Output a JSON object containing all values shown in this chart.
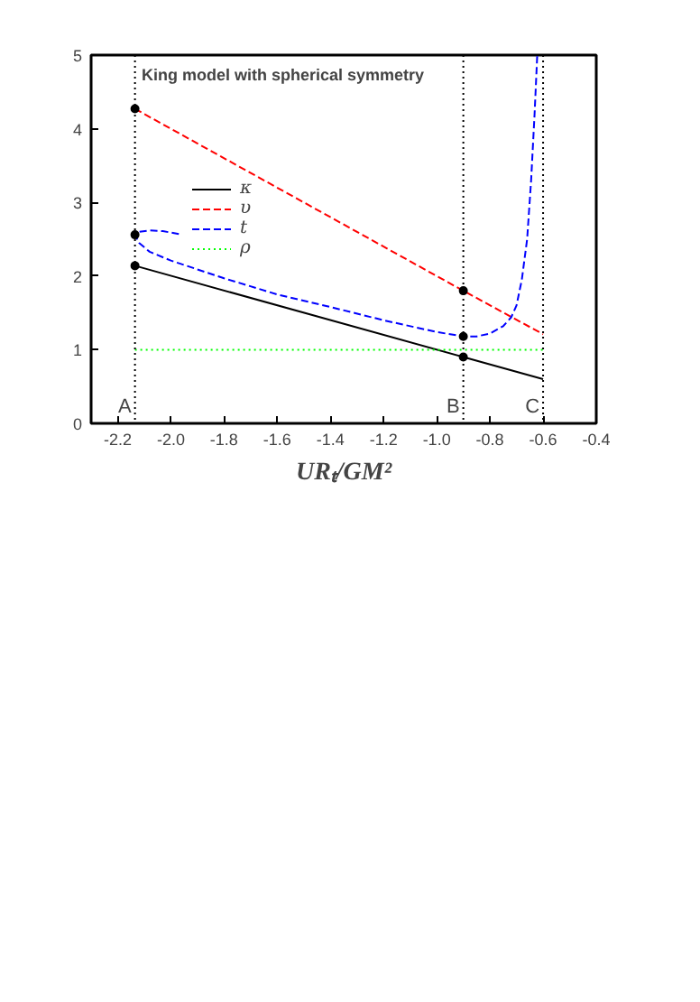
{
  "chart_data": {
    "type": "line",
    "title": "King model with spherical symmetry",
    "xlabel": "URₜ/GM²",
    "xlim": [
      -2.3,
      -0.4
    ],
    "ylim": [
      0,
      5
    ],
    "xticks": [
      -2.2,
      {
        "value": -2.0,
        "label": "-2.0"
      },
      -1.8,
      -1.6,
      -1.4,
      -1.2,
      {
        "value": -1.0,
        "label": "-1.0"
      },
      -0.8,
      -0.6,
      -0.4
    ],
    "yticks": [
      0,
      1,
      2,
      3,
      4,
      5
    ],
    "grid": false,
    "legend": "left",
    "series": [
      {
        "name": "κ",
        "color": "#000000",
        "line_style": "solid",
        "x": [
          -2.135,
          -0.9,
          -0.6
        ],
        "values": [
          2.14,
          0.9,
          0.6
        ]
      },
      {
        "name": "υ",
        "color": "#ff0000",
        "line_style": "dashed",
        "x": [
          -2.135,
          -0.9,
          -0.6
        ],
        "values": [
          4.27,
          1.8,
          1.21
        ]
      },
      {
        "name": "t",
        "color": "#0000ff",
        "line_style": "dashed",
        "x": [
          -1.97,
          -2.03,
          -2.08,
          -2.12,
          -2.135,
          -2.12,
          -2.08,
          -2.0,
          -1.8,
          -1.6,
          -1.4,
          -1.2,
          -1.0,
          -0.9,
          -0.85,
          -0.8,
          -0.75,
          -0.72,
          -0.7,
          -0.68,
          -0.66,
          -0.645,
          -0.632,
          -0.622
        ],
        "values": [
          2.57,
          2.61,
          2.62,
          2.6,
          2.56,
          2.45,
          2.33,
          2.21,
          1.97,
          1.75,
          1.58,
          1.4,
          1.24,
          1.18,
          1.18,
          1.22,
          1.32,
          1.44,
          1.6,
          1.95,
          2.5,
          3.3,
          4.2,
          5.0
        ]
      },
      {
        "name": "ρ",
        "color": "#00ff00",
        "line_style": "dotted",
        "x": [
          -2.135,
          -0.6
        ],
        "values": [
          1.0,
          1.0
        ]
      },
      {
        "type": "scatter",
        "marker": "circle",
        "color": "#000000",
        "x": [
          -2.135,
          -2.135,
          -2.135,
          -0.9,
          -0.9,
          -0.9
        ],
        "values": [
          4.27,
          2.56,
          2.14,
          1.8,
          1.18,
          0.9
        ]
      }
    ],
    "ref_lines": [
      {
        "axis": "x",
        "value": -2.135,
        "label": "A",
        "color": "#000000",
        "line_style": "dotted"
      },
      {
        "axis": "x",
        "value": -0.9,
        "label": "B",
        "color": "#000000",
        "line_style": "dotted"
      },
      {
        "axis": "x",
        "value": -0.6,
        "label": "C",
        "color": "#000000",
        "line_style": "dotted"
      }
    ]
  }
}
